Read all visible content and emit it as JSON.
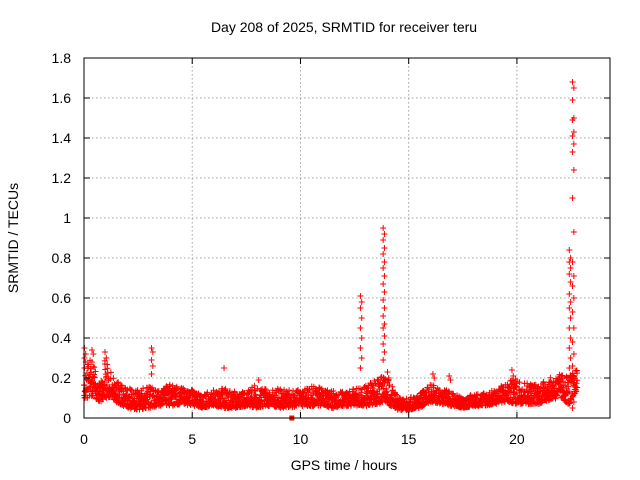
{
  "chart_data": {
    "type": "scatter",
    "title": "Day 208 of 2025, SRMTID for receiver teru",
    "xlabel": "GPS time / hours",
    "ylabel": "SRMTID / TECUs",
    "xlim": [
      0,
      24.3
    ],
    "ylim": [
      0,
      1.8
    ],
    "xticks": [
      "0",
      "5",
      "10",
      "15",
      "20"
    ],
    "xtick_values": [
      0,
      5,
      10,
      15,
      20
    ],
    "yticks": [
      "0",
      "0.2",
      "0.4",
      "0.6",
      "0.8",
      "1",
      "1.2",
      "1.4",
      "1.6",
      "1.8"
    ],
    "ytick_values": [
      0,
      0.2,
      0.4,
      0.6,
      0.8,
      1.0,
      1.2,
      1.4,
      1.6,
      1.8
    ],
    "grid": true,
    "marker": "plus",
    "color": "#ff0000",
    "background_envelope": [
      [
        0.0,
        0.1,
        0.2
      ],
      [
        0.25,
        0.1,
        0.3
      ],
      [
        0.5,
        0.1,
        0.25
      ],
      [
        0.75,
        0.08,
        0.18
      ],
      [
        1.0,
        0.1,
        0.3
      ],
      [
        1.3,
        0.1,
        0.22
      ],
      [
        1.6,
        0.07,
        0.18
      ],
      [
        2.0,
        0.05,
        0.15
      ],
      [
        2.5,
        0.04,
        0.14
      ],
      [
        3.0,
        0.05,
        0.16
      ],
      [
        3.5,
        0.06,
        0.14
      ],
      [
        4.0,
        0.06,
        0.17
      ],
      [
        4.5,
        0.07,
        0.15
      ],
      [
        5.0,
        0.06,
        0.14
      ],
      [
        5.5,
        0.05,
        0.12
      ],
      [
        6.0,
        0.06,
        0.14
      ],
      [
        6.5,
        0.05,
        0.15
      ],
      [
        7.0,
        0.05,
        0.13
      ],
      [
        7.5,
        0.06,
        0.14
      ],
      [
        8.0,
        0.05,
        0.17
      ],
      [
        8.5,
        0.06,
        0.14
      ],
      [
        9.0,
        0.05,
        0.15
      ],
      [
        9.5,
        0.05,
        0.14
      ],
      [
        10.0,
        0.06,
        0.14
      ],
      [
        10.5,
        0.06,
        0.16
      ],
      [
        11.0,
        0.06,
        0.15
      ],
      [
        11.5,
        0.05,
        0.14
      ],
      [
        12.0,
        0.06,
        0.13
      ],
      [
        12.5,
        0.06,
        0.15
      ],
      [
        13.0,
        0.06,
        0.16
      ],
      [
        13.5,
        0.07,
        0.2
      ],
      [
        14.0,
        0.07,
        0.21
      ],
      [
        14.5,
        0.04,
        0.1
      ],
      [
        15.0,
        0.04,
        0.1
      ],
      [
        15.5,
        0.05,
        0.12
      ],
      [
        16.0,
        0.08,
        0.17
      ],
      [
        16.5,
        0.07,
        0.15
      ],
      [
        17.0,
        0.06,
        0.13
      ],
      [
        17.5,
        0.05,
        0.1
      ],
      [
        18.0,
        0.06,
        0.12
      ],
      [
        18.5,
        0.06,
        0.13
      ],
      [
        19.0,
        0.07,
        0.14
      ],
      [
        19.5,
        0.08,
        0.18
      ],
      [
        20.0,
        0.07,
        0.2
      ],
      [
        20.5,
        0.07,
        0.18
      ],
      [
        21.0,
        0.07,
        0.17
      ],
      [
        21.5,
        0.09,
        0.2
      ],
      [
        22.0,
        0.1,
        0.22
      ],
      [
        22.5,
        0.06,
        0.22
      ],
      [
        22.8,
        0.15,
        0.25
      ]
    ],
    "spikes": [
      {
        "x": 0.05,
        "values": [
          0.35,
          0.32,
          0.3,
          0.28,
          0.25
        ]
      },
      {
        "x": 0.4,
        "values": [
          0.34,
          0.32,
          0.28
        ]
      },
      {
        "x": 1.0,
        "values": [
          0.33,
          0.3,
          0.27
        ]
      },
      {
        "x": 3.15,
        "values": [
          0.35,
          0.33,
          0.29,
          0.26,
          0.22
        ]
      },
      {
        "x": 6.5,
        "values": [
          0.25
        ]
      },
      {
        "x": 8.1,
        "values": [
          0.19
        ]
      },
      {
        "x": 12.8,
        "values": [
          0.61,
          0.58,
          0.55,
          0.5,
          0.45,
          0.4,
          0.35,
          0.3,
          0.25
        ]
      },
      {
        "x": 13.85,
        "values": [
          0.95,
          0.92,
          0.89,
          0.85,
          0.82,
          0.78,
          0.75,
          0.71,
          0.67,
          0.63,
          0.59,
          0.55,
          0.51,
          0.47,
          0.45,
          0.41,
          0.37,
          0.33,
          0.29
        ]
      },
      {
        "x": 14.05,
        "values": [
          0.23,
          0.2
        ]
      },
      {
        "x": 16.15,
        "values": [
          0.22,
          0.2
        ]
      },
      {
        "x": 16.9,
        "values": [
          0.21,
          0.19
        ]
      },
      {
        "x": 19.8,
        "values": [
          0.24,
          0.21
        ]
      },
      {
        "x": 22.45,
        "values": [
          0.84,
          0.8,
          0.78,
          0.75,
          0.72,
          0.68,
          0.62,
          0.58,
          0.55,
          0.5,
          0.45,
          0.4,
          0.35,
          0.3,
          0.25
        ]
      },
      {
        "x": 22.6,
        "values": [
          1.68,
          1.65,
          1.59,
          1.5,
          1.49,
          1.43,
          1.41,
          1.37,
          1.33,
          1.24,
          1.1,
          0.93,
          0.78,
          0.71,
          0.66,
          0.6,
          0.53,
          0.45,
          0.38,
          0.32,
          0.26,
          0.2,
          0.12,
          0.08,
          0.05
        ]
      }
    ],
    "outlier_squares": [
      {
        "x": 9.6,
        "y": 0.0
      }
    ]
  }
}
